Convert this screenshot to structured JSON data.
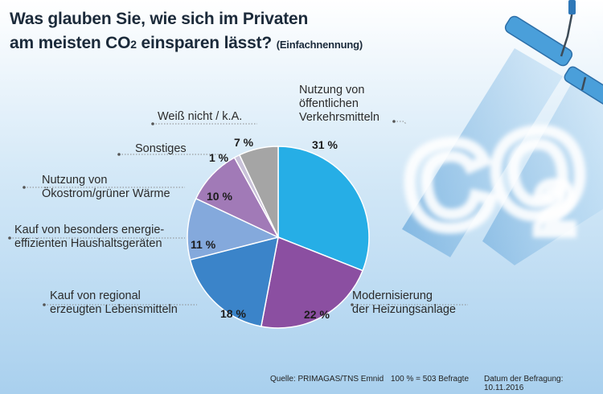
{
  "header": {
    "title_line1": "Was glauben Sie, wie sich im  Privaten",
    "title_line2_pre": "am meisten CO",
    "title_line2_sub": "2",
    "title_line2_post": " einsparen lässt?",
    "title_note": "(Einfachnennung)"
  },
  "decoration": {
    "cloud_text": "CO2"
  },
  "chart_data": {
    "type": "pie",
    "slices": [
      {
        "label": "Nutzung von öffentlichen Verkehrsmitteln",
        "lines": [
          "Nutzung von",
          "öffentlichen",
          "Verkehrsmitteln"
        ],
        "value": 31,
        "display": "31 %",
        "color": "#26aee6"
      },
      {
        "label": "Modernisierung der Heizungsanlage",
        "lines": [
          "Modernisierung",
          "der Heizungsanlage"
        ],
        "value": 22,
        "display": "22 %",
        "color": "#8b4fa1"
      },
      {
        "label": "Kauf von regional erzeugten Lebensmitteln",
        "lines": [
          "Kauf von regional",
          "erzeugten Lebensmitteln"
        ],
        "value": 18,
        "display": "18 %",
        "color": "#3b84c9"
      },
      {
        "label": "Kauf von besonders energie-effizienten Haushaltsgeräten",
        "lines": [
          "Kauf von besonders energie-",
          "effizienten Haushaltsgeräten"
        ],
        "value": 11,
        "display": "11 %",
        "color": "#84a9dc"
      },
      {
        "label": "Nutzung von Ökostrom/grüner Wärme",
        "lines": [
          "Nutzung von",
          "Ökostrom/grüner Wärme"
        ],
        "value": 10,
        "display": "10 %",
        "color": "#a17ab7"
      },
      {
        "label": "Sonstiges",
        "lines": [
          "Sonstiges"
        ],
        "value": 1,
        "display": "1 %",
        "color": "#c9c2d9"
      },
      {
        "label": "Weiß nicht / k.A.",
        "lines": [
          "Weiß nicht / k.A."
        ],
        "value": 7,
        "display": "7 %",
        "color": "#a5a5a5"
      }
    ]
  },
  "footer": {
    "source": "Quelle: PRIMAGAS/TNS Emnid",
    "base": "100 % = 503 Befragte",
    "date": "Datum der Befragung: 10.11.2016"
  }
}
